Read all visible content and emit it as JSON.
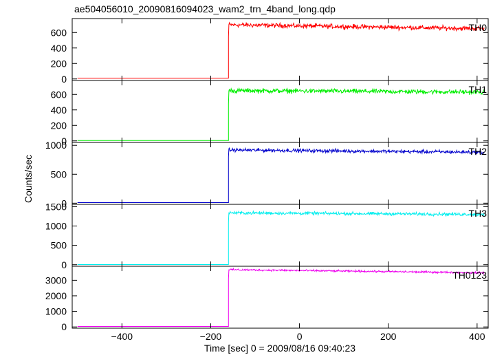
{
  "title": "ae504056010_20090816094023_wam2_trn_4band_long.qdp",
  "ylabel": "Counts/sec",
  "xlabel": "Time [sec] 0 = 2009/08/16 09:40:23",
  "chart_data": {
    "type": "line",
    "title": "ae504056010_20090816094023_wam2_trn_4band_long.qdp",
    "xlabel": "Time [sec] 0 = 2009/08/16 09:40:23",
    "ylabel": "Counts/sec",
    "xlim": [
      -512,
      425
    ],
    "x_ticks": [
      -400,
      -200,
      0,
      200,
      400
    ],
    "step_time": -160,
    "data_end": 416,
    "grid": false,
    "panels": [
      {
        "name": "TH0",
        "color": "#ff0000",
        "ylim": [
          -20,
          780
        ],
        "yticks": [
          0,
          200,
          400,
          600
        ],
        "pre_level": 10,
        "spike": 550,
        "post_start": 700,
        "post_end": 650,
        "noise": 30
      },
      {
        "name": "TH1",
        "color": "#00ee00",
        "ylim": [
          -20,
          780
        ],
        "yticks": [
          0,
          200,
          400,
          600
        ],
        "pre_level": 5,
        "spike": 480,
        "post_start": 650,
        "post_end": 630,
        "noise": 30
      },
      {
        "name": "TH2",
        "color": "#0000cc",
        "ylim": [
          -20,
          1050
        ],
        "yticks": [
          0,
          500,
          1000
        ],
        "pre_level": 10,
        "spike": 800,
        "post_start": 920,
        "post_end": 880,
        "noise": 30
      },
      {
        "name": "TH3",
        "color": "#00eeee",
        "ylim": [
          -40,
          1560
        ],
        "yticks": [
          0,
          500,
          1000,
          1500
        ],
        "pre_level": 5,
        "spike": 1100,
        "post_start": 1340,
        "post_end": 1300,
        "noise": 40
      },
      {
        "name": "TH0123",
        "color": "#ee00ee",
        "ylim": [
          -80,
          3900
        ],
        "yticks": [
          0,
          1000,
          2000,
          3000
        ],
        "pre_level": 30,
        "spike": 3100,
        "post_start": 3680,
        "post_end": 3480,
        "noise": 60
      }
    ]
  }
}
